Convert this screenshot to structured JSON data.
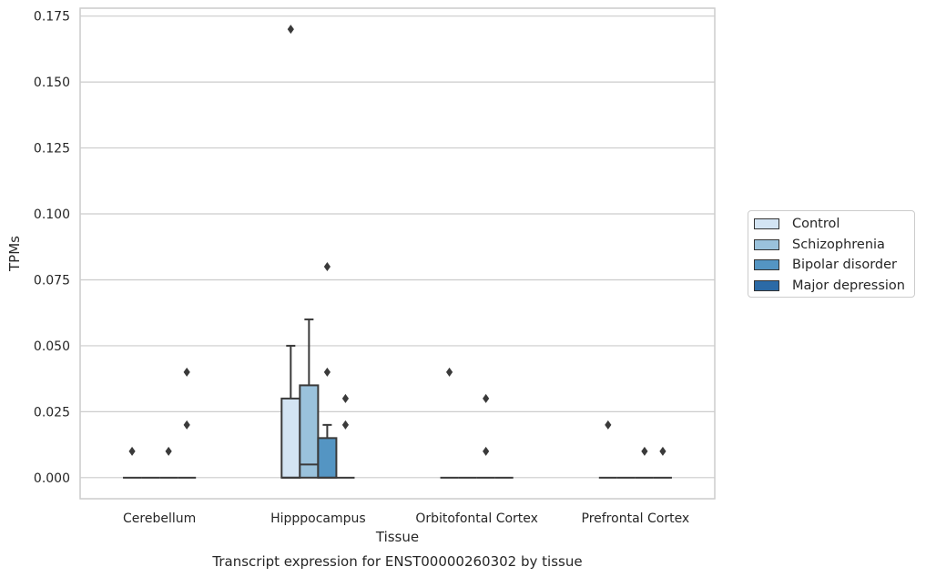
{
  "chart_data": {
    "type": "box",
    "title": "Transcript expression for ENST00000260302 by tissue",
    "xlabel": "Tissue",
    "ylabel": "TPMs",
    "ylim": [
      -0.008,
      0.178
    ],
    "yticks": [
      "0.000",
      "0.025",
      "0.050",
      "0.075",
      "0.100",
      "0.125",
      "0.150",
      "0.175"
    ],
    "categories": [
      "Cerebellum",
      "Hipppocampus",
      "Orbitofontal Cortex",
      "Prefrontal Cortex"
    ],
    "grid": true,
    "legend_position": "right",
    "series": [
      {
        "name": "Control",
        "color": "#d3e4f3",
        "boxes": [
          {
            "category": "Cerebellum",
            "whisker_low": 0,
            "q1": 0,
            "median": 0,
            "q3": 0,
            "whisker_high": 0,
            "outliers": [
              0.01
            ]
          },
          {
            "category": "Hipppocampus",
            "whisker_low": 0,
            "q1": 0,
            "median": 0,
            "q3": 0.03,
            "whisker_high": 0.05,
            "outliers": [
              0.17
            ]
          },
          {
            "category": "Orbitofontal Cortex",
            "whisker_low": 0,
            "q1": 0,
            "median": 0,
            "q3": 0,
            "whisker_high": 0,
            "outliers": [
              0.04
            ]
          },
          {
            "category": "Prefrontal Cortex",
            "whisker_low": 0,
            "q1": 0,
            "median": 0,
            "q3": 0,
            "whisker_high": 0,
            "outliers": [
              0.02
            ]
          }
        ]
      },
      {
        "name": "Schizophrenia",
        "color": "#9ac2dc",
        "boxes": [
          {
            "category": "Cerebellum",
            "whisker_low": 0,
            "q1": 0,
            "median": 0,
            "q3": 0,
            "whisker_high": 0,
            "outliers": []
          },
          {
            "category": "Hipppocampus",
            "whisker_low": 0,
            "q1": 0,
            "median": 0.005,
            "q3": 0.035,
            "whisker_high": 0.06,
            "outliers": []
          },
          {
            "category": "Orbitofontal Cortex",
            "whisker_low": 0,
            "q1": 0,
            "median": 0,
            "q3": 0,
            "whisker_high": 0,
            "outliers": []
          },
          {
            "category": "Prefrontal Cortex",
            "whisker_low": 0,
            "q1": 0,
            "median": 0,
            "q3": 0,
            "whisker_high": 0,
            "outliers": []
          }
        ]
      },
      {
        "name": "Bipolar disorder",
        "color": "#5495c3",
        "boxes": [
          {
            "category": "Cerebellum",
            "whisker_low": 0,
            "q1": 0,
            "median": 0,
            "q3": 0,
            "whisker_high": 0,
            "outliers": [
              0.01
            ]
          },
          {
            "category": "Hipppocampus",
            "whisker_low": 0,
            "q1": 0,
            "median": 0,
            "q3": 0.015,
            "whisker_high": 0.02,
            "outliers": [
              0.04,
              0.08
            ]
          },
          {
            "category": "Orbitofontal Cortex",
            "whisker_low": 0,
            "q1": 0,
            "median": 0,
            "q3": 0,
            "whisker_high": 0,
            "outliers": [
              0.01,
              0.03
            ]
          },
          {
            "category": "Prefrontal Cortex",
            "whisker_low": 0,
            "q1": 0,
            "median": 0,
            "q3": 0,
            "whisker_high": 0,
            "outliers": [
              0.01
            ]
          }
        ]
      },
      {
        "name": "Major depression",
        "color": "#2b6aa6",
        "boxes": [
          {
            "category": "Cerebellum",
            "whisker_low": 0,
            "q1": 0,
            "median": 0,
            "q3": 0,
            "whisker_high": 0,
            "outliers": [
              0.02,
              0.04
            ]
          },
          {
            "category": "Hipppocampus",
            "whisker_low": 0,
            "q1": 0,
            "median": 0,
            "q3": 0,
            "whisker_high": 0,
            "outliers": [
              0.02,
              0.03
            ]
          },
          {
            "category": "Orbitofontal Cortex",
            "whisker_low": 0,
            "q1": 0,
            "median": 0,
            "q3": 0,
            "whisker_high": 0,
            "outliers": []
          },
          {
            "category": "Prefrontal Cortex",
            "whisker_low": 0,
            "q1": 0,
            "median": 0,
            "q3": 0,
            "whisker_high": 0,
            "outliers": [
              0.01
            ]
          }
        ]
      }
    ]
  }
}
